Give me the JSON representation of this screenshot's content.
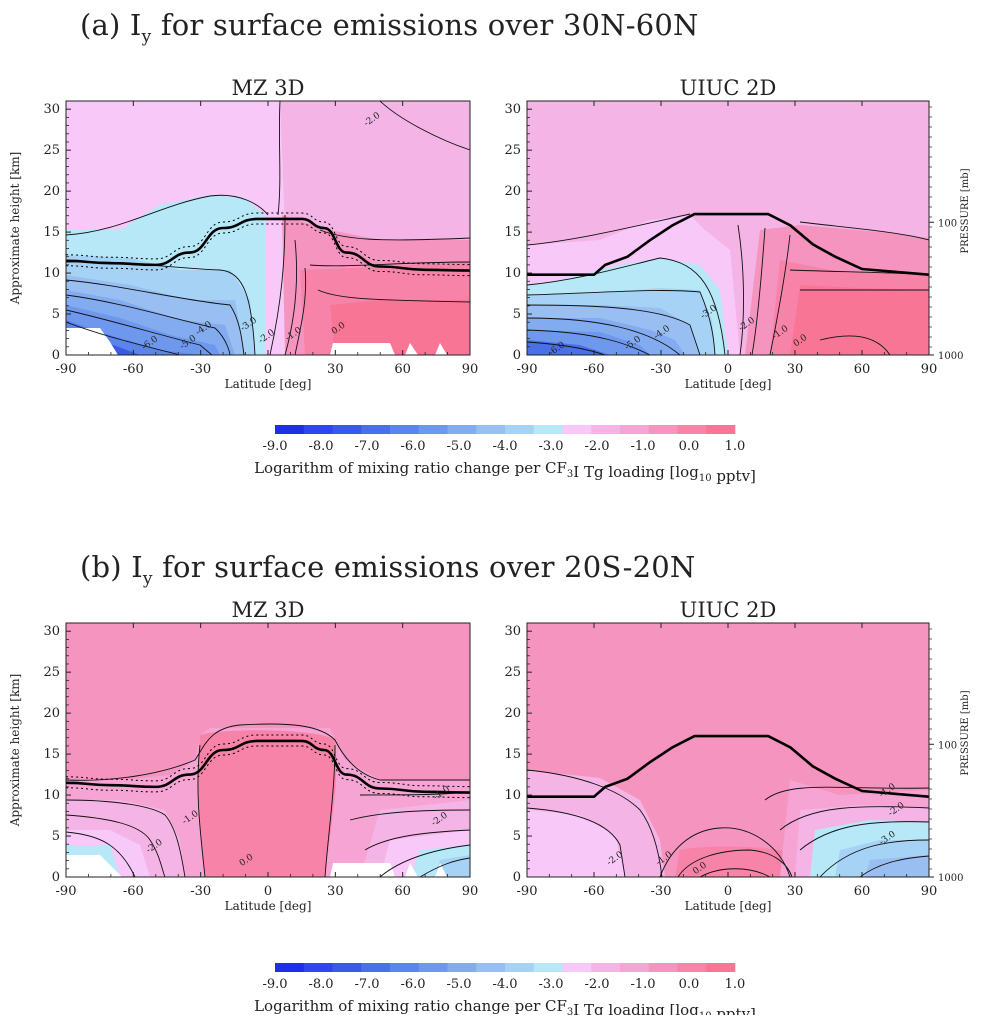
{
  "panel_a": {
    "title_prefix": "(a) I",
    "title_sub": "y",
    "title_suffix": " for surface emissions over 30N-60N"
  },
  "panel_b": {
    "title_prefix": "(b) I",
    "title_sub": "y",
    "title_suffix": " for surface emissions over 20S-20N"
  },
  "colorbar": {
    "ticks": [
      "-9.0",
      "-8.0",
      "-7.0",
      "-6.0",
      "-5.0",
      "-4.0",
      "-3.0",
      "-2.0",
      "-1.0",
      "0.0",
      "1.0"
    ],
    "label_part1": "Logarithm of mixing ratio change per CF",
    "label_sub1": "3",
    "label_part2": "I Tg loading [log",
    "label_sub2": "10",
    "label_part3": " pptv]",
    "colors": [
      "#1f2ee8",
      "#2f46ea",
      "#3a5ae6",
      "#4a70e8",
      "#5b84ec",
      "#6e98ee",
      "#83abf0",
      "#98bef2",
      "#a6d2f5",
      "#b6e8f8",
      "#f8c8f8",
      "#f5b4e6",
      "#f5a4d4",
      "#f594bf",
      "#f784a8",
      "#f97596"
    ]
  },
  "chart_data": [
    {
      "type": "contour",
      "title": "MZ 3D",
      "panel": "a",
      "xlabel": "Latitude [deg]",
      "ylabel": "Approximate height [km]",
      "right_label": "",
      "xlim": [
        -90,
        90
      ],
      "ylim": [
        0,
        31
      ],
      "xticks": [
        "-90",
        "-60",
        "-30",
        "0",
        "30",
        "60",
        "90"
      ],
      "yticks": [
        "0",
        "5",
        "10",
        "15",
        "20",
        "25",
        "30"
      ],
      "contour_labels": [
        {
          "text": "-6.0",
          "lat": -52,
          "z": 1.2
        },
        {
          "text": "-5.0",
          "lat": -35,
          "z": 1.3
        },
        {
          "text": "-4.0",
          "lat": -28,
          "z": 3.0
        },
        {
          "text": "-3.0",
          "lat": -8,
          "z": 3.5
        },
        {
          "text": "-2.0",
          "lat": 0,
          "z": 2.0
        },
        {
          "text": "-1.0",
          "lat": 12,
          "z": 2.3
        },
        {
          "text": "0.0",
          "lat": 32,
          "z": 3.0
        },
        {
          "text": "-2.0",
          "lat": 47,
          "z": 28.5
        }
      ],
      "tropopause": [
        [
          -90,
          11.5
        ],
        [
          -70,
          11.2
        ],
        [
          -50,
          11.0
        ],
        [
          -35,
          12.5
        ],
        [
          -20,
          15.5
        ],
        [
          -5,
          16.6
        ],
        [
          15,
          16.6
        ],
        [
          25,
          15.5
        ],
        [
          35,
          12.5
        ],
        [
          50,
          10.8
        ],
        [
          70,
          10.4
        ],
        [
          90,
          10.3
        ]
      ]
    },
    {
      "type": "contour",
      "title": "UIUC 2D",
      "panel": "a",
      "xlabel": "Latitude [deg]",
      "ylabel": "",
      "right_label": "PRESSURE [mb]",
      "right_ticks": [
        "100",
        "1000"
      ],
      "xlim": [
        -90,
        90
      ],
      "ylim": [
        0,
        31
      ],
      "xticks": [
        "-90",
        "-60",
        "-30",
        "0",
        "30",
        "60",
        "90"
      ],
      "yticks": [
        "0",
        "5",
        "10",
        "15",
        "20",
        "25",
        "30"
      ],
      "contour_labels": [
        {
          "text": "-6.0",
          "lat": -76,
          "z": 0.5
        },
        {
          "text": "-5.0",
          "lat": -42,
          "z": 1.2
        },
        {
          "text": "-4.0",
          "lat": -29,
          "z": 2.5
        },
        {
          "text": "-3.0",
          "lat": -8,
          "z": 5.0
        },
        {
          "text": "-2.0",
          "lat": 9,
          "z": 3.5
        },
        {
          "text": "-1.0",
          "lat": 24,
          "z": 2.5
        },
        {
          "text": "0.0",
          "lat": 33,
          "z": 1.5
        }
      ],
      "tropopause": [
        [
          -90,
          9.8
        ],
        [
          -60,
          9.8
        ],
        [
          -55,
          11
        ],
        [
          -45,
          12
        ],
        [
          -35,
          14
        ],
        [
          -25,
          15.8
        ],
        [
          -15,
          17.2
        ],
        [
          18,
          17.2
        ],
        [
          28,
          15.8
        ],
        [
          38,
          13.5
        ],
        [
          48,
          12
        ],
        [
          60,
          10.5
        ],
        [
          90,
          9.8
        ]
      ]
    },
    {
      "type": "contour",
      "title": "MZ 3D",
      "panel": "b",
      "xlabel": "Latitude [deg]",
      "ylabel": "Approximate height [km]",
      "right_label": "",
      "xlim": [
        -90,
        90
      ],
      "ylim": [
        0,
        31
      ],
      "xticks": [
        "-90",
        "-60",
        "-30",
        "0",
        "30",
        "60",
        "90"
      ],
      "yticks": [
        "0",
        "5",
        "10",
        "15",
        "20",
        "25",
        "30"
      ],
      "contour_labels": [
        {
          "text": "-2.0",
          "lat": -50,
          "z": 3.5
        },
        {
          "text": "-1.0",
          "lat": -34,
          "z": 7.0
        },
        {
          "text": "0.0",
          "lat": -9,
          "z": 1.8
        },
        {
          "text": "-1.0",
          "lat": 78,
          "z": 10.0
        },
        {
          "text": "-2.0",
          "lat": 77,
          "z": 6.8
        }
      ],
      "tropopause": [
        [
          -90,
          11.5
        ],
        [
          -70,
          11.2
        ],
        [
          -50,
          11.0
        ],
        [
          -35,
          12.5
        ],
        [
          -20,
          15.5
        ],
        [
          -5,
          16.6
        ],
        [
          15,
          16.6
        ],
        [
          25,
          15.5
        ],
        [
          35,
          12.5
        ],
        [
          50,
          10.8
        ],
        [
          70,
          10.4
        ],
        [
          90,
          10.3
        ]
      ]
    },
    {
      "type": "contour",
      "title": "UIUC 2D",
      "panel": "b",
      "xlabel": "Latitude [deg]",
      "ylabel": "",
      "right_label": "PRESSURE [mb]",
      "right_ticks": [
        "100",
        "1000"
      ],
      "xlim": [
        -90,
        90
      ],
      "ylim": [
        0,
        31
      ],
      "xticks": [
        "-90",
        "-60",
        "-30",
        "0",
        "30",
        "60",
        "90"
      ],
      "yticks": [
        "0",
        "5",
        "10",
        "15",
        "20",
        "25",
        "30"
      ],
      "contour_labels": [
        {
          "text": "-2.0",
          "lat": -50,
          "z": 2.0
        },
        {
          "text": "-1.0",
          "lat": -28,
          "z": 2.0
        },
        {
          "text": "0.0",
          "lat": -12,
          "z": 0.8
        },
        {
          "text": "-1.0",
          "lat": 72,
          "z": 10.3
        },
        {
          "text": "-2.0",
          "lat": 76,
          "z": 8.0
        },
        {
          "text": "-3.0",
          "lat": 72,
          "z": 4.5
        }
      ],
      "tropopause": [
        [
          -90,
          9.8
        ],
        [
          -60,
          9.8
        ],
        [
          -55,
          11
        ],
        [
          -45,
          12
        ],
        [
          -35,
          14
        ],
        [
          -25,
          15.8
        ],
        [
          -15,
          17.2
        ],
        [
          18,
          17.2
        ],
        [
          28,
          15.8
        ],
        [
          38,
          13.5
        ],
        [
          48,
          12
        ],
        [
          60,
          10.5
        ],
        [
          90,
          9.8
        ]
      ]
    }
  ]
}
